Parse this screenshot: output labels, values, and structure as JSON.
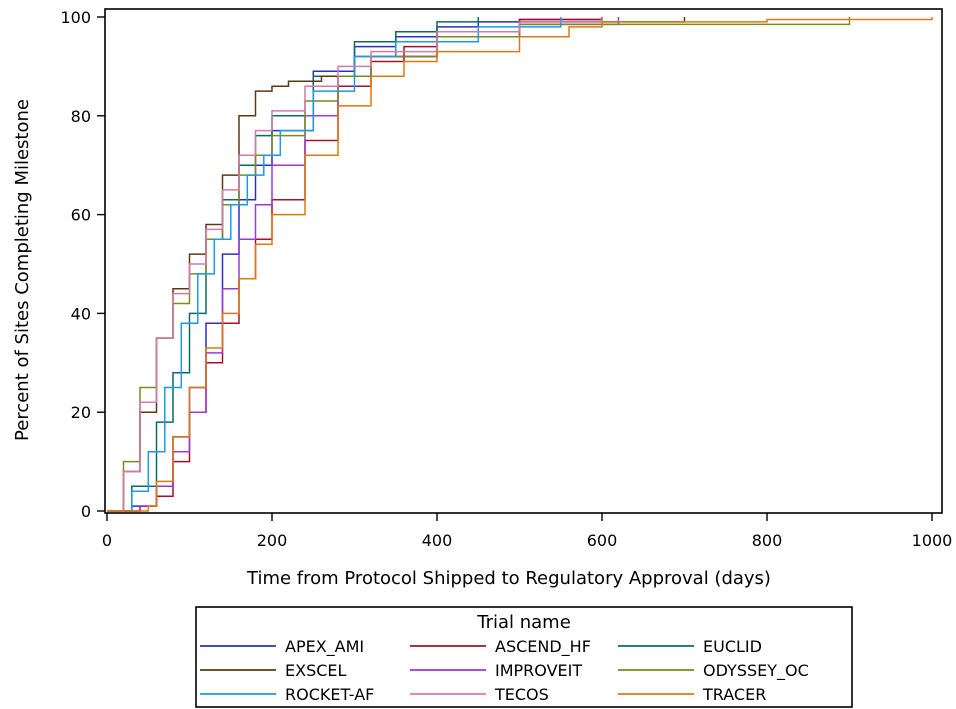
{
  "chart_data": {
    "type": "line",
    "step": true,
    "xlabel": "Time from Protocol Shipped to Regulatory Approval (days)",
    "ylabel": "Percent of Sites Completing Milestone",
    "xlim": [
      0,
      1000
    ],
    "ylim": [
      0,
      100
    ],
    "xticks": [
      0,
      200,
      400,
      600,
      800,
      1000
    ],
    "yticks": [
      0,
      20,
      40,
      60,
      80,
      100
    ],
    "grid": false,
    "legend": {
      "title": "Trial name",
      "placement": "bottom",
      "columns": 3
    },
    "series": [
      {
        "name": "APEX_AMI",
        "color": "#2a2fc4",
        "x": [
          0,
          30,
          60,
          80,
          100,
          120,
          140,
          160,
          180,
          200,
          250,
          300,
          350,
          400,
          450,
          500,
          600
        ],
        "y": [
          0,
          1,
          5,
          15,
          25,
          38,
          52,
          63,
          70,
          77,
          89,
          94,
          96,
          98,
          99,
          99.5,
          100
        ]
      },
      {
        "name": "ASCEND_HF",
        "color": "#a8102a",
        "x": [
          0,
          40,
          60,
          80,
          100,
          120,
          140,
          160,
          180,
          200,
          240,
          280,
          320,
          360,
          400,
          500,
          600
        ],
        "y": [
          0,
          1,
          3,
          10,
          20,
          30,
          38,
          47,
          55,
          63,
          75,
          86,
          91,
          94,
          96,
          99.5,
          100
        ]
      },
      {
        "name": "EUCLID",
        "color": "#0a6b6b",
        "x": [
          0,
          30,
          60,
          80,
          100,
          120,
          140,
          160,
          180,
          200,
          250,
          300,
          350,
          400,
          450
        ],
        "y": [
          0,
          5,
          18,
          28,
          40,
          55,
          63,
          70,
          76,
          80,
          88,
          95,
          97,
          99,
          100
        ]
      },
      {
        "name": "EXSCEL",
        "color": "#5a3a10",
        "x": [
          0,
          20,
          40,
          60,
          80,
          100,
          120,
          140,
          160,
          180,
          200,
          220,
          260,
          300,
          400,
          500,
          700
        ],
        "y": [
          0,
          8,
          20,
          35,
          45,
          52,
          58,
          68,
          80,
          85,
          86,
          87,
          88,
          92,
          97,
          99,
          100
        ]
      },
      {
        "name": "IMPROVEIT",
        "color": "#9a3ad6",
        "x": [
          0,
          40,
          60,
          80,
          100,
          120,
          140,
          160,
          180,
          200,
          240,
          280,
          320,
          400,
          500,
          620
        ],
        "y": [
          0,
          1,
          5,
          12,
          20,
          32,
          45,
          55,
          62,
          70,
          80,
          88,
          92,
          96,
          98.5,
          100
        ]
      },
      {
        "name": "ODYSSEY_OC",
        "color": "#7a8a1e",
        "x": [
          0,
          20,
          40,
          60,
          80,
          100,
          120,
          140,
          160,
          180,
          200,
          240,
          280,
          320,
          400,
          500,
          900
        ],
        "y": [
          0,
          10,
          25,
          35,
          42,
          48,
          55,
          62,
          68,
          72,
          76,
          83,
          88,
          92,
          96,
          98.5,
          100
        ]
      },
      {
        "name": "ROCKET-AF",
        "color": "#1a9ae8",
        "x": [
          0,
          30,
          50,
          70,
          90,
          110,
          130,
          150,
          170,
          190,
          210,
          250,
          300,
          350,
          450,
          550
        ],
        "y": [
          0,
          4,
          12,
          25,
          38,
          48,
          55,
          62,
          68,
          72,
          77,
          85,
          92,
          95,
          98,
          100
        ]
      },
      {
        "name": "TECOS",
        "color": "#d47aa8",
        "x": [
          0,
          20,
          40,
          60,
          80,
          100,
          120,
          140,
          160,
          180,
          200,
          240,
          280,
          320,
          400,
          500,
          600
        ],
        "y": [
          0,
          8,
          22,
          35,
          44,
          50,
          57,
          65,
          72,
          77,
          81,
          86,
          90,
          93,
          97,
          99,
          100
        ]
      },
      {
        "name": "TRACER",
        "color": "#e07810",
        "x": [
          0,
          50,
          60,
          80,
          100,
          120,
          140,
          160,
          180,
          200,
          240,
          280,
          320,
          360,
          400,
          500,
          560,
          600,
          800,
          1000
        ],
        "y": [
          0,
          1,
          6,
          15,
          25,
          33,
          40,
          47,
          54,
          60,
          72,
          82,
          88,
          91,
          93,
          96,
          98,
          99,
          99.5,
          100
        ]
      }
    ]
  }
}
